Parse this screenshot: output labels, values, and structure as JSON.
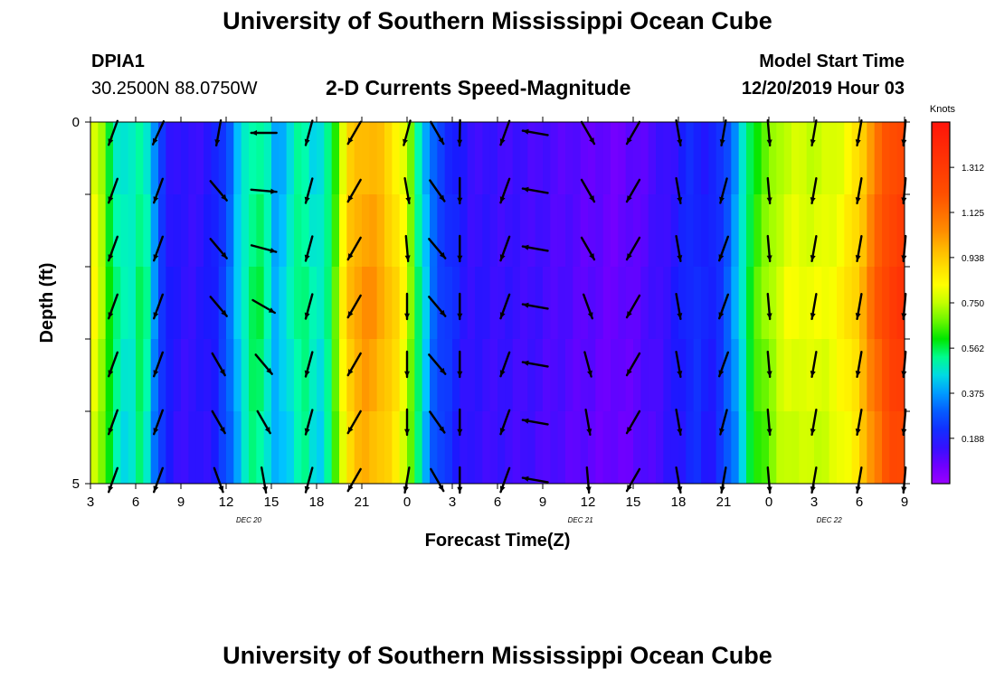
{
  "header": {
    "title": "University of Southern Mississippi Ocean Cube",
    "station_id": "DPIA1",
    "station_coords": "30.2500N 88.0750W",
    "subtitle": "2-D Currents Speed-Magnitude",
    "model_label": "Model Start Time",
    "model_time": "12/20/2019 Hour 03"
  },
  "footer": {
    "title": "University of Southern Mississippi Ocean Cube"
  },
  "chart_data": {
    "type": "heatmap",
    "title": "2-D Currents Speed-Magnitude",
    "xlabel": "Forecast Time(Z)",
    "ylabel": "Depth (ft)",
    "x_hours": [
      0,
      3,
      6,
      9,
      12,
      15,
      18,
      21,
      24,
      27,
      30,
      33,
      36,
      39,
      42,
      45,
      48,
      51,
      54
    ],
    "x_tick_labels": [
      "3",
      "6",
      "9",
      "12",
      "15",
      "18",
      "21",
      "0",
      "3",
      "6",
      "9",
      "12",
      "15",
      "18",
      "21",
      "0",
      "3",
      "6",
      "9"
    ],
    "date_labels": [
      {
        "hour": 10.5,
        "text": "DEC 20"
      },
      {
        "hour": 32.5,
        "text": "DEC 21"
      },
      {
        "hour": 49,
        "text": "DEC 22"
      }
    ],
    "y_tick_labels": [
      "0",
      "5"
    ],
    "ylim": [
      0,
      5
    ],
    "colorbar": {
      "unit": "Knots",
      "ticks": [
        "1.312",
        "1.125",
        "0.938",
        "0.750",
        "0.562",
        "0.375",
        "0.188"
      ],
      "tick_values": [
        1.312,
        1.125,
        0.938,
        0.75,
        0.562,
        0.375,
        0.188
      ],
      "vmin": 0.0,
      "vmax": 1.5
    },
    "speed_profile_knots": [
      [
        0,
        0.85
      ],
      [
        0.5,
        0.8
      ],
      [
        1,
        0.68
      ],
      [
        1.5,
        0.55
      ],
      [
        2,
        0.5
      ],
      [
        2.5,
        0.48
      ],
      [
        3,
        0.52
      ],
      [
        3.5,
        0.6
      ],
      [
        4,
        0.42
      ],
      [
        4.3,
        0.36
      ],
      [
        4.6,
        0.28
      ],
      [
        5,
        0.2
      ],
      [
        5.5,
        0.17
      ],
      [
        6,
        0.16
      ],
      [
        7,
        0.16
      ],
      [
        8,
        0.18
      ],
      [
        9,
        0.28
      ],
      [
        9.5,
        0.37
      ],
      [
        10,
        0.48
      ],
      [
        11,
        0.58
      ],
      [
        11.8,
        0.5
      ],
      [
        12.3,
        0.4
      ],
      [
        13,
        0.45
      ],
      [
        14,
        0.57
      ],
      [
        14.5,
        0.52
      ],
      [
        15,
        0.45
      ],
      [
        15.5,
        0.5
      ],
      [
        16,
        0.6
      ],
      [
        16.5,
        0.75
      ],
      [
        17,
        0.95
      ],
      [
        18,
        1.05
      ],
      [
        19,
        1.03
      ],
      [
        20,
        0.95
      ],
      [
        21,
        0.8
      ],
      [
        21.5,
        0.62
      ],
      [
        22,
        0.48
      ],
      [
        22.5,
        0.36
      ],
      [
        23,
        0.28
      ],
      [
        24,
        0.22
      ],
      [
        25,
        0.16
      ],
      [
        27,
        0.15
      ],
      [
        29,
        0.14
      ],
      [
        31,
        0.12
      ],
      [
        33,
        0.1
      ],
      [
        35,
        0.08
      ],
      [
        37,
        0.12
      ],
      [
        39,
        0.18
      ],
      [
        40,
        0.24
      ],
      [
        41,
        0.18
      ],
      [
        42,
        0.26
      ],
      [
        43,
        0.42
      ],
      [
        43.5,
        0.55
      ],
      [
        44,
        0.64
      ],
      [
        45,
        0.72
      ],
      [
        46,
        0.8
      ],
      [
        47,
        0.82
      ],
      [
        48,
        0.8
      ],
      [
        49,
        0.82
      ],
      [
        50,
        0.86
      ],
      [
        51,
        0.95
      ],
      [
        52,
        1.15
      ],
      [
        53,
        1.3
      ],
      [
        54,
        1.34
      ]
    ],
    "vectors": [
      {
        "hour": 1.5,
        "angles": [
          -160,
          -160,
          -160,
          -160,
          -160,
          -160,
          -160
        ]
      },
      {
        "hour": 4.5,
        "angles": [
          -155,
          -160,
          -160,
          -160,
          -160,
          -160,
          -160
        ]
      },
      {
        "hour": 8.5,
        "angles": [
          -170,
          140,
          140,
          140,
          150,
          150,
          160
        ]
      },
      {
        "hour": 11.5,
        "angles": [
          -90,
          95,
          105,
          120,
          140,
          150,
          170
        ]
      },
      {
        "hour": 14.5,
        "angles": [
          -165,
          -165,
          -165,
          -165,
          -165,
          -165,
          -165
        ]
      },
      {
        "hour": 17.5,
        "angles": [
          -150,
          -150,
          -150,
          -150,
          -150,
          -150,
          -150
        ]
      },
      {
        "hour": 21,
        "angles": [
          -165,
          170,
          175,
          180,
          180,
          180,
          -170
        ]
      },
      {
        "hour": 23,
        "angles": [
          150,
          145,
          140,
          140,
          140,
          145,
          150
        ]
      },
      {
        "hour": 24.5,
        "angles": [
          -179,
          180,
          180,
          180,
          180,
          180,
          180
        ]
      },
      {
        "hour": 27.5,
        "angles": [
          -160,
          -160,
          -160,
          -160,
          -160,
          -160,
          -160
        ]
      },
      {
        "hour": 29.5,
        "angles": [
          -80,
          -80,
          -80,
          -80,
          -80,
          -80,
          -80
        ]
      },
      {
        "hour": 33,
        "angles": [
          150,
          150,
          150,
          160,
          165,
          170,
          175
        ]
      },
      {
        "hour": 36,
        "angles": [
          -150,
          -150,
          -150,
          -150,
          -150,
          -150,
          -150
        ]
      },
      {
        "hour": 39,
        "angles": [
          170,
          170,
          170,
          170,
          170,
          170,
          170
        ]
      },
      {
        "hour": 42,
        "angles": [
          -170,
          -165,
          -160,
          -160,
          -160,
          -165,
          -170
        ]
      },
      {
        "hour": 45,
        "angles": [
          175,
          175,
          175,
          175,
          175,
          175,
          175
        ]
      },
      {
        "hour": 48,
        "angles": [
          -170,
          -170,
          -170,
          -170,
          -170,
          -170,
          -170
        ]
      },
      {
        "hour": 51,
        "angles": [
          -170,
          -170,
          -170,
          -170,
          -170,
          -170,
          -170
        ]
      },
      {
        "hour": 54,
        "angles": [
          -175,
          -175,
          -175,
          -175,
          -175,
          -175,
          -175
        ]
      }
    ]
  }
}
